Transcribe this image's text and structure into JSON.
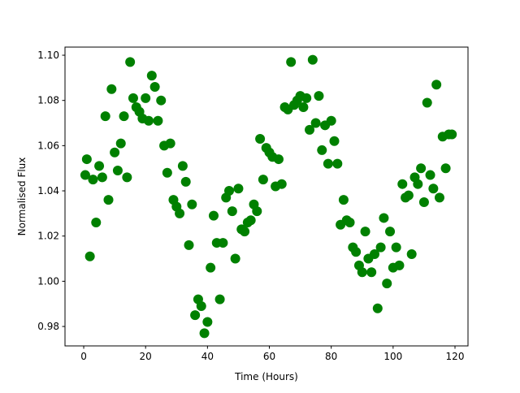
{
  "chart_data": {
    "type": "scatter",
    "title": "",
    "xlabel": "Time (Hours)",
    "ylabel": "Normalised Flux",
    "xlim": [
      -6.05,
      124.2
    ],
    "ylim": [
      0.9714,
      1.1036
    ],
    "xticks": [
      0,
      20,
      40,
      60,
      80,
      100,
      120
    ],
    "yticks": [
      "0.98",
      "1.00",
      "1.02",
      "1.04",
      "1.06",
      "1.08",
      "1.10"
    ],
    "grid": false,
    "marker_color": "#008000",
    "series": [
      {
        "x": [
          0.5,
          1,
          2,
          3,
          4,
          5,
          6,
          7,
          8,
          9,
          10,
          11,
          12,
          13,
          14,
          15,
          16,
          17,
          18,
          19,
          20,
          21,
          22,
          23,
          24,
          25,
          26,
          27,
          28,
          29,
          30,
          31,
          32,
          33,
          34,
          35,
          36,
          37,
          38,
          39,
          40,
          41,
          42,
          43,
          44,
          45,
          46,
          47,
          48,
          49,
          50,
          51,
          52,
          53,
          54,
          55,
          56,
          57,
          58,
          59,
          60,
          61,
          62,
          63,
          64,
          65,
          66,
          67,
          68,
          69,
          70,
          71,
          72,
          73,
          74,
          75,
          76,
          77,
          78,
          79,
          80,
          81,
          82,
          83,
          84,
          85,
          86,
          87,
          88,
          89,
          90,
          91,
          92,
          93,
          94,
          95,
          96,
          97,
          98,
          99,
          100,
          101,
          102,
          103,
          104,
          105,
          106,
          107,
          108,
          109,
          110,
          111,
          112,
          113,
          114,
          115,
          116,
          117,
          118,
          119
        ],
        "y": [
          1.047,
          1.054,
          1.011,
          1.045,
          1.026,
          1.051,
          1.046,
          1.073,
          1.036,
          1.085,
          1.057,
          1.049,
          1.061,
          1.073,
          1.046,
          1.097,
          1.081,
          1.077,
          1.075,
          1.072,
          1.081,
          1.071,
          1.091,
          1.086,
          1.071,
          1.08,
          1.06,
          1.048,
          1.061,
          1.036,
          1.033,
          1.03,
          1.051,
          1.044,
          1.016,
          1.034,
          0.985,
          0.992,
          0.989,
          0.977,
          0.982,
          1.006,
          1.029,
          1.017,
          0.992,
          1.017,
          1.037,
          1.04,
          1.031,
          1.01,
          1.041,
          1.023,
          1.022,
          1.026,
          1.027,
          1.034,
          1.031,
          1.063,
          1.045,
          1.059,
          1.057,
          1.055,
          1.042,
          1.054,
          1.043,
          1.077,
          1.076,
          1.097,
          1.078,
          1.08,
          1.082,
          1.077,
          1.081,
          1.067,
          1.098,
          1.07,
          1.082,
          1.058,
          1.069,
          1.052,
          1.071,
          1.062,
          1.052,
          1.025,
          1.036,
          1.027,
          1.026,
          1.015,
          1.013,
          1.007,
          1.004,
          1.022,
          1.01,
          1.004,
          1.012,
          0.988,
          1.015,
          1.028,
          0.999,
          1.022,
          1.006,
          1.015,
          1.007,
          1.043,
          1.037,
          1.038,
          1.012,
          1.046,
          1.043,
          1.05,
          1.035,
          1.079,
          1.047,
          1.041,
          1.087,
          1.037,
          1.064,
          1.05,
          1.065,
          1.065
        ]
      }
    ]
  }
}
